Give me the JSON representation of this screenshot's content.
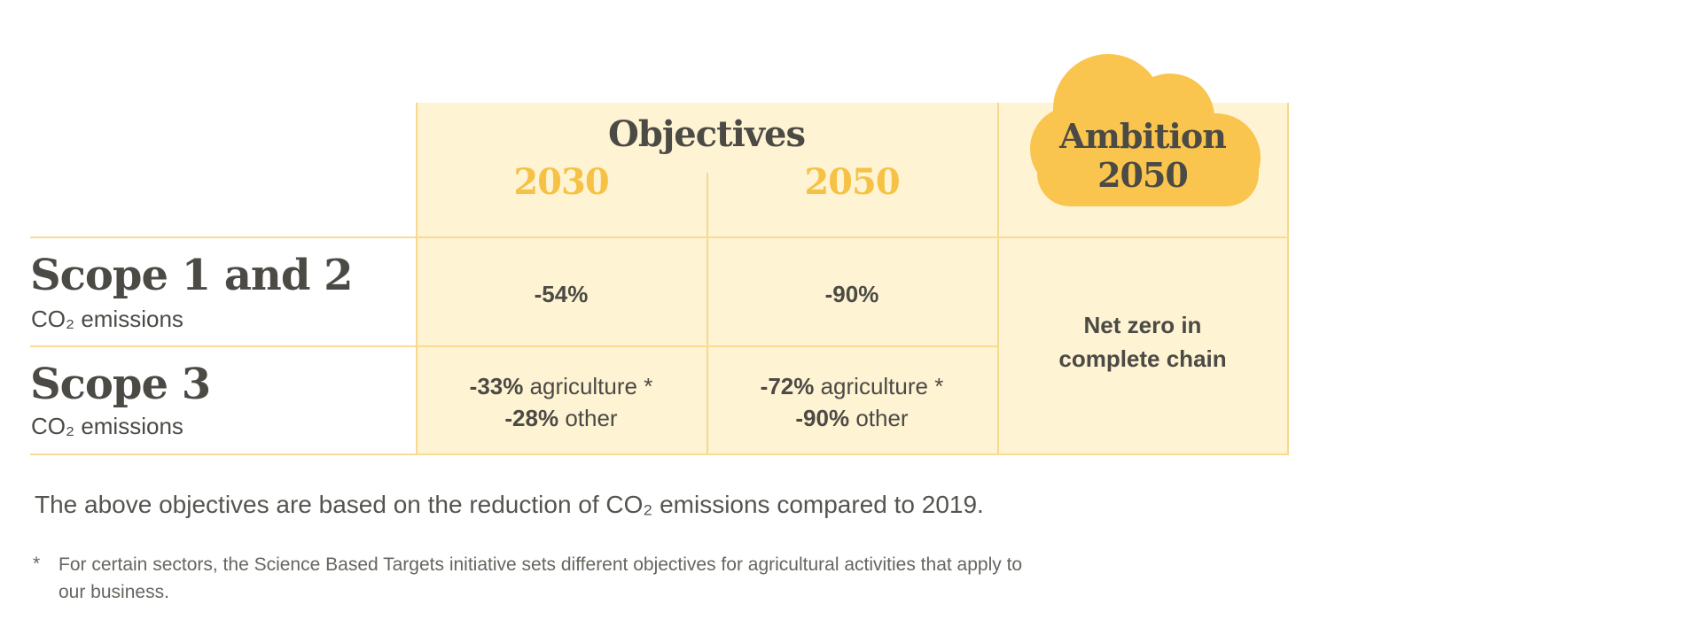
{
  "header": {
    "objectives": "Objectives",
    "year_2030": "2030",
    "year_2050": "2050",
    "ambition_line1": "Ambition",
    "ambition_line2": "2050"
  },
  "rows": [
    {
      "title": "Scope 1 and 2",
      "subtitle": "CO₂ emissions",
      "v2030": "-54%",
      "v2050": "-90%"
    },
    {
      "title": "Scope 3",
      "subtitle": "CO₂ emissions",
      "v2030_a_num": "-33%",
      "v2030_a_txt": " agriculture *",
      "v2030_b_num": "-28%",
      "v2030_b_txt": " other",
      "v2050_a_num": "-72%",
      "v2050_a_txt": " agriculture *",
      "v2050_b_num": "-90%",
      "v2050_b_txt": " other"
    }
  ],
  "ambition_value_line1": "Net zero in",
  "ambition_value_line2": "complete chain",
  "note": "The above objectives are based on the reduction of CO₂ emissions compared to 2019.",
  "footnote_marker": "*",
  "footnote_line1": "For certain sectors, the Science Based Targets initiative sets different objectives for agricultural activities that apply to",
  "footnote_line2": "our business.",
  "colors": {
    "cell_bg": "#fef3d2",
    "line": "#f8dc94",
    "cloud": "#f9c54e",
    "year": "#f5c245",
    "text": "#4b4a45"
  }
}
